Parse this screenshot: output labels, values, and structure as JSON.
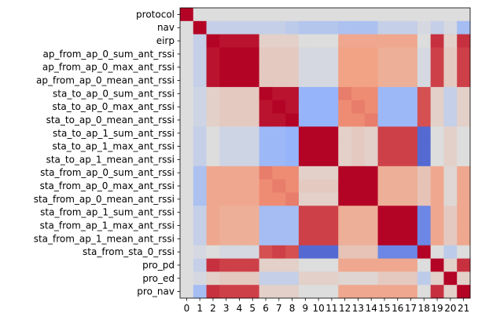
{
  "chart_data": {
    "type": "heatmap",
    "title": "",
    "xlabel": "",
    "ylabel": "",
    "colormap": "coolwarm",
    "color_range": [
      -1,
      1
    ],
    "grid": false,
    "legend": "none",
    "row_labels": [
      "protocol",
      "nav",
      "eirp",
      "ap_from_ap_0_sum_ant_rssi",
      "ap_from_ap_0_max_ant_rssi",
      "ap_from_ap_0_mean_ant_rssi",
      "sta_to_ap_0_sum_ant_rssi",
      "sta_to_ap_0_max_ant_rssi",
      "sta_to_ap_0_mean_ant_rssi",
      "sta_to_ap_1_sum_ant_rssi",
      "sta_to_ap_1_max_ant_rssi",
      "sta_to_ap_1_mean_ant_rssi",
      "sta_from_ap_0_sum_ant_rssi",
      "sta_from_ap_0_max_ant_rssi",
      "sta_from_ap_0_mean_ant_rssi",
      "sta_from_ap_1_sum_ant_rssi",
      "sta_from_ap_1_max_ant_rssi",
      "sta_from_ap_1_mean_ant_rssi",
      "sta_from_sta_0_rssi",
      "pro_pd",
      "pro_ed",
      "pro_nav"
    ],
    "col_labels": [
      "0",
      "1",
      "2",
      "3",
      "4",
      "5",
      "6",
      "7",
      "8",
      "9",
      "10",
      "11",
      "12",
      "13",
      "14",
      "15",
      "16",
      "17",
      "18",
      "19",
      "20",
      "21"
    ],
    "matrix": [
      [
        1.0,
        0.0,
        0.0,
        0.0,
        0.0,
        0.0,
        0.0,
        0.0,
        0.0,
        0.0,
        0.0,
        0.0,
        0.0,
        0.0,
        0.0,
        0.0,
        0.0,
        0.0,
        0.0,
        0.0,
        0.0,
        0.0
      ],
      [
        0.0,
        1.0,
        -0.15,
        -0.15,
        -0.15,
        -0.15,
        -0.15,
        -0.15,
        -0.2,
        -0.25,
        -0.25,
        -0.25,
        -0.3,
        -0.3,
        -0.3,
        -0.15,
        -0.15,
        -0.15,
        -0.05,
        -0.15,
        -0.05,
        -0.35
      ],
      [
        0.0,
        -0.15,
        1.0,
        0.95,
        0.95,
        0.95,
        0.1,
        0.1,
        0.1,
        0.0,
        0.0,
        0.0,
        0.4,
        0.4,
        0.4,
        0.4,
        0.4,
        0.4,
        0.0,
        0.85,
        0.1,
        0.85
      ],
      [
        0.0,
        -0.15,
        0.95,
        1.0,
        1.0,
        1.0,
        0.15,
        0.15,
        0.15,
        -0.05,
        -0.05,
        -0.05,
        0.45,
        0.45,
        0.45,
        0.35,
        0.35,
        0.35,
        -0.05,
        0.8,
        0.15,
        0.8
      ],
      [
        0.0,
        -0.15,
        0.95,
        1.0,
        1.0,
        1.0,
        0.15,
        0.15,
        0.15,
        -0.05,
        -0.05,
        -0.05,
        0.45,
        0.45,
        0.45,
        0.35,
        0.35,
        0.35,
        -0.05,
        0.8,
        0.15,
        0.8
      ],
      [
        0.0,
        -0.15,
        0.95,
        1.0,
        1.0,
        1.0,
        0.15,
        0.15,
        0.15,
        -0.05,
        -0.05,
        -0.05,
        0.45,
        0.45,
        0.45,
        0.35,
        0.35,
        0.35,
        -0.05,
        0.8,
        0.15,
        0.8
      ],
      [
        0.0,
        -0.1,
        0.1,
        0.15,
        0.15,
        0.15,
        1.0,
        0.95,
        0.95,
        -0.45,
        -0.45,
        -0.45,
        0.6,
        0.55,
        0.55,
        -0.4,
        -0.4,
        -0.4,
        0.75,
        0.1,
        -0.15,
        0.1
      ],
      [
        0.0,
        -0.1,
        0.1,
        0.15,
        0.15,
        0.15,
        0.95,
        1.0,
        0.95,
        -0.45,
        -0.45,
        -0.45,
        0.55,
        0.6,
        0.55,
        -0.4,
        -0.4,
        -0.4,
        0.75,
        0.1,
        -0.15,
        0.1
      ],
      [
        0.0,
        -0.1,
        0.1,
        0.15,
        0.15,
        0.15,
        0.95,
        0.95,
        1.0,
        -0.45,
        -0.45,
        -0.45,
        0.55,
        0.55,
        0.6,
        -0.4,
        -0.4,
        -0.4,
        0.75,
        0.1,
        -0.15,
        0.1
      ],
      [
        0.0,
        -0.15,
        0.0,
        -0.1,
        -0.1,
        -0.1,
        -0.4,
        -0.4,
        -0.45,
        1.0,
        1.0,
        1.0,
        0.1,
        0.15,
        0.1,
        0.8,
        0.8,
        0.8,
        -0.85,
        0.0,
        0.1,
        0.0
      ],
      [
        0.0,
        -0.15,
        0.0,
        -0.1,
        -0.1,
        -0.1,
        -0.4,
        -0.4,
        -0.45,
        1.0,
        1.0,
        1.0,
        0.1,
        0.15,
        0.1,
        0.8,
        0.8,
        0.8,
        -0.85,
        0.0,
        0.1,
        0.0
      ],
      [
        0.0,
        -0.15,
        0.0,
        -0.1,
        -0.1,
        -0.1,
        -0.4,
        -0.4,
        -0.45,
        1.0,
        1.0,
        1.0,
        0.1,
        0.15,
        0.1,
        0.8,
        0.8,
        0.8,
        -0.85,
        0.0,
        0.1,
        0.0
      ],
      [
        0.0,
        -0.3,
        0.4,
        0.4,
        0.4,
        0.4,
        0.6,
        0.55,
        0.55,
        0.1,
        0.1,
        0.1,
        1.0,
        1.0,
        1.0,
        0.35,
        0.35,
        0.35,
        0.2,
        0.4,
        0.05,
        0.4
      ],
      [
        0.0,
        -0.3,
        0.4,
        0.4,
        0.4,
        0.4,
        0.55,
        0.6,
        0.55,
        0.15,
        0.15,
        0.15,
        1.0,
        1.0,
        1.0,
        0.35,
        0.35,
        0.35,
        0.2,
        0.4,
        0.05,
        0.4
      ],
      [
        0.0,
        -0.3,
        0.4,
        0.4,
        0.4,
        0.4,
        0.55,
        0.55,
        0.6,
        0.1,
        0.1,
        0.1,
        1.0,
        1.0,
        1.0,
        0.35,
        0.35,
        0.35,
        0.2,
        0.4,
        0.05,
        0.4
      ],
      [
        0.0,
        -0.15,
        0.4,
        0.35,
        0.35,
        0.35,
        -0.35,
        -0.35,
        -0.35,
        0.8,
        0.8,
        0.8,
        0.35,
        0.35,
        0.35,
        1.0,
        1.0,
        1.0,
        -0.7,
        0.4,
        0.15,
        0.4
      ],
      [
        0.0,
        -0.15,
        0.4,
        0.35,
        0.35,
        0.35,
        -0.35,
        -0.35,
        -0.35,
        0.8,
        0.8,
        0.8,
        0.35,
        0.35,
        0.35,
        1.0,
        1.0,
        1.0,
        -0.7,
        0.4,
        0.15,
        0.4
      ],
      [
        0.0,
        -0.15,
        0.4,
        0.35,
        0.35,
        0.35,
        -0.35,
        -0.35,
        -0.35,
        0.8,
        0.8,
        0.8,
        0.35,
        0.35,
        0.35,
        1.0,
        1.0,
        1.0,
        -0.7,
        0.4,
        0.15,
        0.4
      ],
      [
        0.0,
        -0.05,
        0.0,
        -0.05,
        -0.05,
        -0.05,
        0.75,
        0.8,
        0.75,
        -0.85,
        -0.85,
        -0.85,
        0.2,
        0.2,
        0.2,
        -0.7,
        -0.7,
        -0.7,
        1.0,
        0.0,
        -0.2,
        0.0
      ],
      [
        0.0,
        -0.15,
        0.85,
        0.8,
        0.8,
        0.8,
        0.1,
        0.1,
        0.1,
        0.0,
        0.0,
        0.0,
        0.4,
        0.4,
        0.4,
        0.4,
        0.4,
        0.4,
        0.0,
        1.0,
        0.1,
        0.85
      ],
      [
        0.0,
        -0.05,
        0.1,
        0.15,
        0.15,
        0.15,
        -0.15,
        -0.15,
        -0.15,
        0.1,
        0.1,
        0.1,
        0.05,
        0.05,
        0.05,
        0.15,
        0.15,
        0.15,
        -0.2,
        0.1,
        1.0,
        0.1
      ],
      [
        0.0,
        -0.35,
        0.85,
        0.8,
        0.8,
        0.8,
        0.1,
        0.1,
        0.1,
        0.0,
        0.0,
        0.0,
        0.4,
        0.4,
        0.4,
        0.4,
        0.4,
        0.4,
        0.0,
        0.85,
        0.1,
        1.0
      ]
    ]
  }
}
